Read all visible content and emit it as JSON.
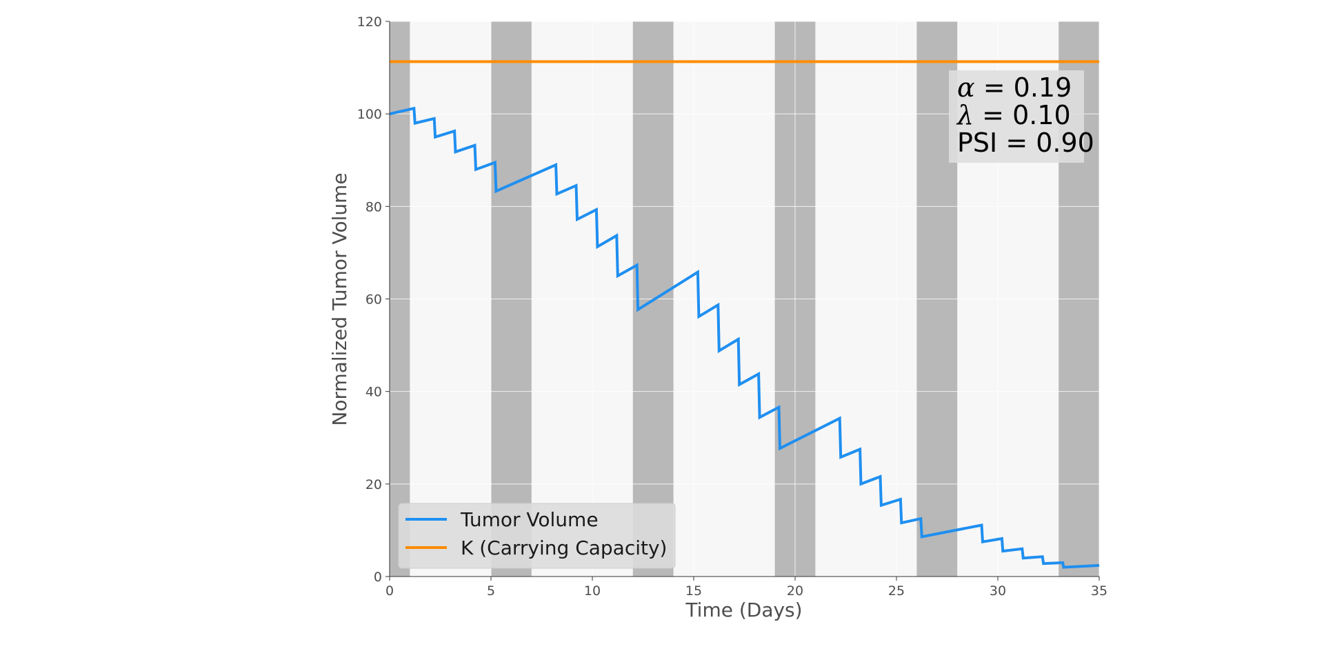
{
  "chart_data": {
    "type": "line",
    "title": "",
    "xlabel": "Time (Days)",
    "ylabel": "Normalized Tumor Volume",
    "xlim": [
      0,
      35
    ],
    "ylim": [
      0,
      120
    ],
    "xticks": [
      "0",
      "5",
      "10",
      "15",
      "20",
      "25",
      "30",
      "35"
    ],
    "yticks": [
      "0",
      "20",
      "40",
      "60",
      "80",
      "100",
      "120"
    ],
    "grid": true,
    "legend": "lower-left",
    "treatment_windows": [
      [
        0,
        1
      ],
      [
        5,
        7
      ],
      [
        12,
        14
      ],
      [
        19,
        21
      ],
      [
        26,
        28
      ],
      [
        33,
        35
      ]
    ],
    "series": [
      {
        "name": "Tumor Volume",
        "color": "#1f8ff0",
        "points": [
          [
            0,
            100
          ],
          [
            1.2,
            101.2
          ],
          [
            1.25,
            98
          ],
          [
            2.2,
            99
          ],
          [
            2.25,
            95
          ],
          [
            3.2,
            96.3
          ],
          [
            3.25,
            91.8
          ],
          [
            4.2,
            93.2
          ],
          [
            4.25,
            88
          ],
          [
            5.2,
            89.5
          ],
          [
            5.25,
            83.3
          ],
          [
            8.2,
            89
          ],
          [
            8.25,
            82.7
          ],
          [
            9.2,
            84.5
          ],
          [
            9.25,
            77.2
          ],
          [
            10.2,
            79.3
          ],
          [
            10.25,
            71.3
          ],
          [
            11.2,
            73.7
          ],
          [
            11.25,
            65
          ],
          [
            12.2,
            67.3
          ],
          [
            12.25,
            57.7
          ],
          [
            15.2,
            65.8
          ],
          [
            15.25,
            56.2
          ],
          [
            16.2,
            58.7
          ],
          [
            16.25,
            48.8
          ],
          [
            17.2,
            51.3
          ],
          [
            17.25,
            41.5
          ],
          [
            18.2,
            43.8
          ],
          [
            18.25,
            34.4
          ],
          [
            19.2,
            36.6
          ],
          [
            19.25,
            27.7
          ],
          [
            22.2,
            34.2
          ],
          [
            22.25,
            25.8
          ],
          [
            23.2,
            27.5
          ],
          [
            23.25,
            20
          ],
          [
            24.2,
            21.6
          ],
          [
            24.25,
            15.4
          ],
          [
            25.2,
            16.7
          ],
          [
            25.25,
            11.6
          ],
          [
            26.2,
            12.5
          ],
          [
            26.25,
            8.6
          ],
          [
            29.2,
            11.1
          ],
          [
            29.25,
            7.5
          ],
          [
            30.2,
            8.2
          ],
          [
            30.25,
            5.5
          ],
          [
            31.2,
            6
          ],
          [
            31.25,
            4
          ],
          [
            32.2,
            4.3
          ],
          [
            32.25,
            2.8
          ],
          [
            33.2,
            3
          ],
          [
            33.25,
            2
          ],
          [
            35,
            2.4
          ]
        ]
      },
      {
        "name": "K (Carrying Capacity)",
        "color": "#ff8c00",
        "points": [
          [
            0,
            111.3
          ],
          [
            35,
            111.3
          ]
        ]
      }
    ],
    "annotation": {
      "alpha": "0.19",
      "lambda": "0.10",
      "psi": "0.90"
    }
  }
}
